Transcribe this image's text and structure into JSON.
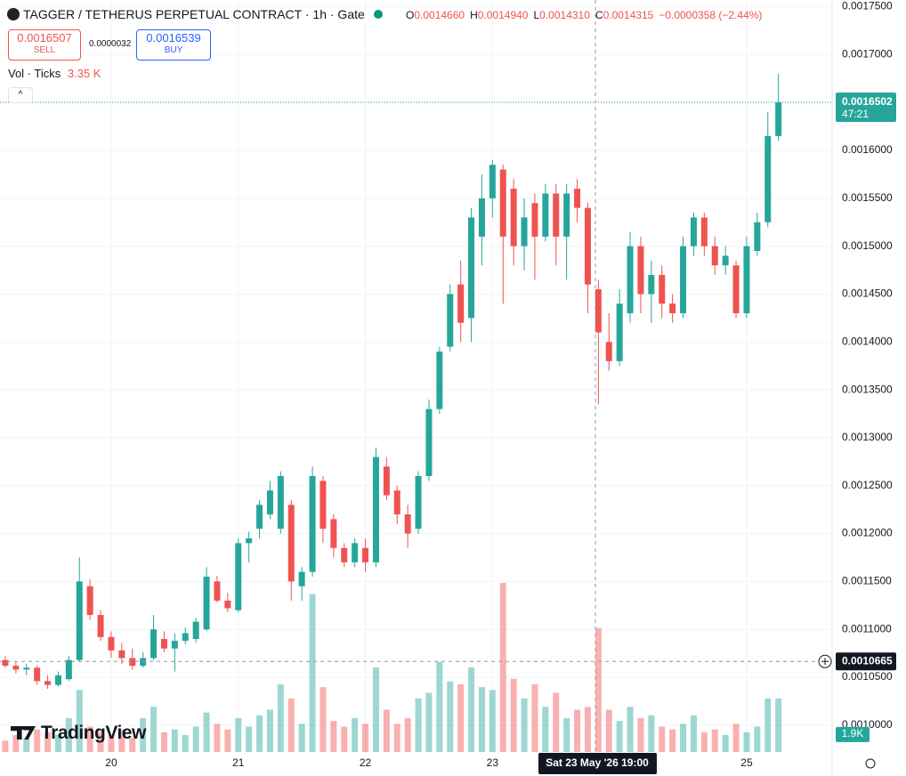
{
  "header": {
    "title": "TAGGER / TETHERUS PERPETUAL CONTRACT · 1h · Gate",
    "ohlc": [
      {
        "label": "O",
        "value": "0.0014660"
      },
      {
        "label": "H",
        "value": "0.0014940"
      },
      {
        "label": "L",
        "value": "0.0014310"
      },
      {
        "label": "C",
        "value": "0.0014315"
      }
    ],
    "change": "−0.0000358 (−2.44%)",
    "sell": {
      "price": "0.0016507",
      "label": "SELL"
    },
    "spread": "0.0000032",
    "buy": {
      "price": "0.0016539",
      "label": "BUY"
    },
    "volume_legend": {
      "label": "Vol · Ticks",
      "value": "3.35 K"
    }
  },
  "watermark": "TradingView",
  "chart_data": {
    "type": "candlestick",
    "up_color": "#26a69a",
    "down_color": "#ef5350",
    "grid": true,
    "categories": [
      null,
      null,
      null,
      null,
      null,
      null,
      null,
      null,
      null,
      null,
      "20",
      null,
      null,
      null,
      null,
      null,
      null,
      null,
      null,
      null,
      null,
      null,
      "21",
      null,
      null,
      null,
      null,
      null,
      null,
      null,
      null,
      null,
      null,
      null,
      "22",
      null,
      null,
      null,
      null,
      null,
      null,
      null,
      null,
      null,
      null,
      null,
      "23",
      null,
      null,
      null,
      null,
      null,
      null,
      null,
      null,
      null,
      null,
      null,
      null,
      null,
      null,
      null,
      null,
      null,
      null,
      null,
      null,
      null,
      null,
      null,
      "25",
      null,
      null,
      null
    ],
    "open": [
      0.001068,
      0.001062,
      0.001058,
      0.00106,
      0.001046,
      0.001042,
      0.001048,
      0.001068,
      0.001145,
      0.001115,
      0.001092,
      0.001078,
      0.00107,
      0.001062,
      0.00107,
      0.00109,
      0.00108,
      0.001088,
      0.00109,
      0.0011,
      0.00115,
      0.00113,
      0.00112,
      0.00119,
      0.001205,
      0.00122,
      0.001205,
      0.00123,
      0.001145,
      0.00116,
      0.001255,
      0.001215,
      0.001185,
      0.00117,
      0.001185,
      0.00117,
      0.00127,
      0.001245,
      0.00122,
      0.001205,
      0.00126,
      0.00133,
      0.001395,
      0.00146,
      0.001425,
      0.00151,
      0.00155,
      0.00158,
      0.00156,
      0.0015,
      0.001545,
      0.00151,
      0.001555,
      0.00151,
      0.00156,
      0.00154,
      0.001455,
      0.0014,
      0.00138,
      0.00143,
      0.0015,
      0.00145,
      0.00147,
      0.00144,
      0.00143,
      0.0015,
      0.00153,
      0.0015,
      0.00148,
      0.00148,
      0.00143,
      0.001495,
      0.001525,
      0.001615
    ],
    "high": [
      0.001072,
      0.001066,
      0.001064,
      0.001062,
      0.001052,
      0.001056,
      0.001072,
      0.001175,
      0.001152,
      0.00112,
      0.001098,
      0.001086,
      0.00108,
      0.001076,
      0.001115,
      0.001098,
      0.001096,
      0.001102,
      0.001112,
      0.001165,
      0.001156,
      0.001138,
      0.001195,
      0.001202,
      0.001235,
      0.001255,
      0.001265,
      0.001235,
      0.001165,
      0.00127,
      0.00126,
      0.00122,
      0.00119,
      0.001195,
      0.001195,
      0.00129,
      0.00128,
      0.00125,
      0.00123,
      0.001265,
      0.00134,
      0.001395,
      0.00146,
      0.001485,
      0.00154,
      0.001575,
      0.00159,
      0.001585,
      0.00157,
      0.00155,
      0.001555,
      0.001565,
      0.001565,
      0.001565,
      0.00157,
      0.001545,
      0.001465,
      0.00143,
      0.001455,
      0.001515,
      0.00151,
      0.001485,
      0.00148,
      0.00145,
      0.00151,
      0.001535,
      0.001535,
      0.00151,
      0.0015,
      0.001485,
      0.00151,
      0.001535,
      0.00164,
      0.00168
    ],
    "low": [
      0.00106,
      0.001054,
      0.001052,
      0.001042,
      0.001038,
      0.00104,
      0.001046,
      0.001066,
      0.00111,
      0.001088,
      0.00107,
      0.001064,
      0.001058,
      0.00106,
      0.001068,
      0.001076,
      0.001056,
      0.001084,
      0.001086,
      0.001098,
      0.001128,
      0.001118,
      0.001118,
      0.00117,
      0.001195,
      0.001215,
      0.0012,
      0.00113,
      0.00113,
      0.001155,
      0.00119,
      0.001175,
      0.001165,
      0.001165,
      0.00116,
      0.001165,
      0.001235,
      0.00121,
      0.001185,
      0.0012,
      0.001255,
      0.001325,
      0.00139,
      0.0014,
      0.0014,
      0.00148,
      0.00153,
      0.00144,
      0.00148,
      0.001475,
      0.001465,
      0.001505,
      0.00148,
      0.001465,
      0.001525,
      0.00143,
      0.001335,
      0.00137,
      0.001375,
      0.00142,
      0.00143,
      0.00142,
      0.001425,
      0.00142,
      0.001425,
      0.00149,
      0.00149,
      0.00147,
      0.00147,
      0.001425,
      0.001425,
      0.00149,
      0.00152,
      0.00161
    ],
    "close": [
      0.001062,
      0.001058,
      0.00106,
      0.001046,
      0.001042,
      0.001052,
      0.001068,
      0.00115,
      0.001115,
      0.001092,
      0.001078,
      0.00107,
      0.001062,
      0.00107,
      0.0011,
      0.00108,
      0.001088,
      0.001096,
      0.001108,
      0.001155,
      0.00113,
      0.001122,
      0.00119,
      0.001195,
      0.00123,
      0.001245,
      0.00126,
      0.00115,
      0.00116,
      0.00126,
      0.001205,
      0.001185,
      0.00117,
      0.00119,
      0.00117,
      0.00128,
      0.00124,
      0.00122,
      0.0012,
      0.00126,
      0.00133,
      0.00139,
      0.00145,
      0.00142,
      0.00153,
      0.00155,
      0.001585,
      0.00151,
      0.0015,
      0.00153,
      0.00151,
      0.001555,
      0.00151,
      0.001555,
      0.00154,
      0.00146,
      0.00141,
      0.00138,
      0.00144,
      0.0015,
      0.00145,
      0.00147,
      0.00144,
      0.00143,
      0.0015,
      0.00153,
      0.0015,
      0.00148,
      0.00149,
      0.00143,
      0.0015,
      0.001525,
      0.001615,
      0.0016502
    ],
    "volume": [
      400,
      600,
      500,
      800,
      700,
      600,
      1200,
      2200,
      900,
      700,
      600,
      800,
      500,
      1200,
      1600,
      700,
      800,
      600,
      900,
      1400,
      1000,
      800,
      1200,
      900,
      1300,
      1500,
      2400,
      1900,
      1000,
      5600,
      2300,
      1100,
      900,
      1200,
      1000,
      3000,
      1500,
      1000,
      1200,
      1900,
      2100,
      3200,
      2500,
      2400,
      3000,
      2300,
      2200,
      6000,
      2600,
      1900,
      2400,
      1600,
      2100,
      1200,
      1500,
      1600,
      4400,
      1500,
      1100,
      1600,
      1200,
      1300,
      900,
      800,
      1000,
      1300,
      700,
      800,
      600,
      1000,
      700,
      900,
      1900,
      1900
    ],
    "volume_labels": {
      "73": "1.9K"
    },
    "ylim": [
      0.000972,
      0.001757
    ],
    "yticks": [
      {
        "value": 0.001,
        "label": "0.0010000"
      },
      {
        "value": 0.00105,
        "label": "0.0010500"
      },
      {
        "value": 0.0011,
        "label": "0.0011000"
      },
      {
        "value": 0.00115,
        "label": "0.0011500"
      },
      {
        "value": 0.0012,
        "label": "0.0012000"
      },
      {
        "value": 0.00125,
        "label": "0.0012500"
      },
      {
        "value": 0.0013,
        "label": "0.0013000"
      },
      {
        "value": 0.00135,
        "label": "0.0013500"
      },
      {
        "value": 0.0014,
        "label": "0.0014000"
      },
      {
        "value": 0.00145,
        "label": "0.0014500"
      },
      {
        "value": 0.0015,
        "label": "0.0015000"
      },
      {
        "value": 0.00155,
        "label": "0.0015500"
      },
      {
        "value": 0.0016,
        "label": "0.0016000"
      },
      {
        "value": 0.00165,
        "label": "0.0016500"
      },
      {
        "value": 0.0017,
        "label": "0.0017000"
      },
      {
        "value": 0.00175,
        "label": "0.0017500"
      }
    ],
    "last_price": {
      "value": 0.0016502,
      "label": "0.0016502",
      "countdown": "47:21"
    },
    "crosshair": {
      "price": 0.0010665,
      "price_label": "0.0010665",
      "time_label": "Sat 23 May '26 19:00"
    }
  }
}
